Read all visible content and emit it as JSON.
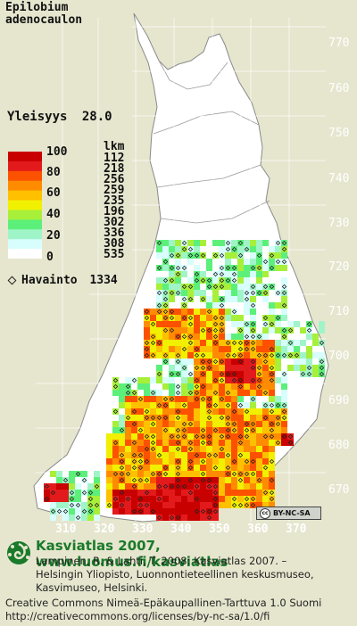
{
  "species": {
    "line1": "Epilobium",
    "line2": "adenocaulon"
  },
  "frequency": {
    "label": "Yleisyys",
    "value": "28.0"
  },
  "legend": {
    "count_header": "lkm",
    "scale_labels": [
      "100",
      "80",
      "60",
      "40",
      "20",
      "0"
    ],
    "counts": [
      "112",
      "218",
      "256",
      "259",
      "235",
      "196",
      "302",
      "336",
      "308",
      "535"
    ],
    "colors": [
      "#c80000",
      "#e31a1c",
      "#fc5200",
      "#ff8c00",
      "#ffc000",
      "#f0f000",
      "#a8ef3a",
      "#5cf07a",
      "#a0f5c8",
      "#d8fdfd",
      "#ffffff"
    ]
  },
  "observations": {
    "label": "Havainto",
    "count": "1334"
  },
  "axes": {
    "y_ticks": [
      "770",
      "760",
      "750",
      "740",
      "730",
      "720",
      "710",
      "700",
      "690",
      "680",
      "670"
    ],
    "x_ticks": [
      "310",
      "320",
      "330",
      "340",
      "350",
      "360",
      "370"
    ]
  },
  "license_badge": {
    "cc": "cc",
    "text": "BY-NC-SA"
  },
  "footer": {
    "site_title": "Kasviatlas 2007, www.luomus.fi/kasviatlas",
    "citation_line1": "Lampinen, R. & Lahti, T. 2008: Kasviatlas 2007. –",
    "citation_line2": "Helsingin Yliopisto, Luonnontieteellinen keskusmuseo,",
    "citation_line3": "Kasvimuseo, Helsinki.",
    "license_line1": "Creative Commons Nimeä-Epäkaupallinen-Tarttuva 1.0 Suomi",
    "license_line2": "http://creativecommons.org/licenses/by-nc-sa/1.0/fi"
  },
  "map_colors": {
    "background": "#e6e6cf",
    "land": "#ffffff",
    "border": "#9a9a9a",
    "grid": "#ffffff"
  }
}
